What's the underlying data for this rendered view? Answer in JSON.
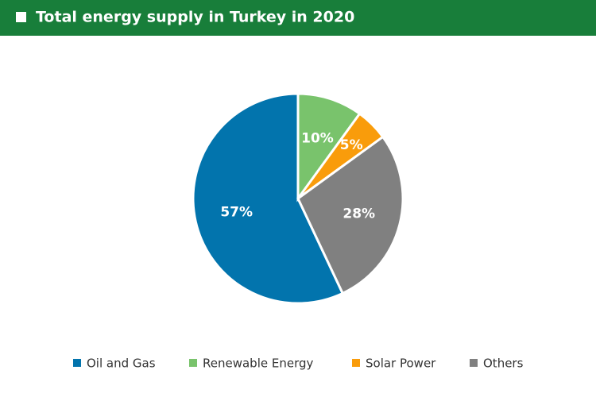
{
  "chart_data": {
    "type": "pie",
    "title": "Total energy supply in Turkey in 2020",
    "categories": [
      "Oil and Gas",
      "Renewable Energy",
      "Solar Power",
      "Others"
    ],
    "values": [
      57,
      10,
      5,
      28
    ],
    "value_labels": [
      "57%",
      "10%",
      "5%",
      "28%"
    ],
    "colors": [
      "#0274ad",
      "#79c36c",
      "#f99c0b",
      "#808080"
    ],
    "legend": "bottom"
  }
}
